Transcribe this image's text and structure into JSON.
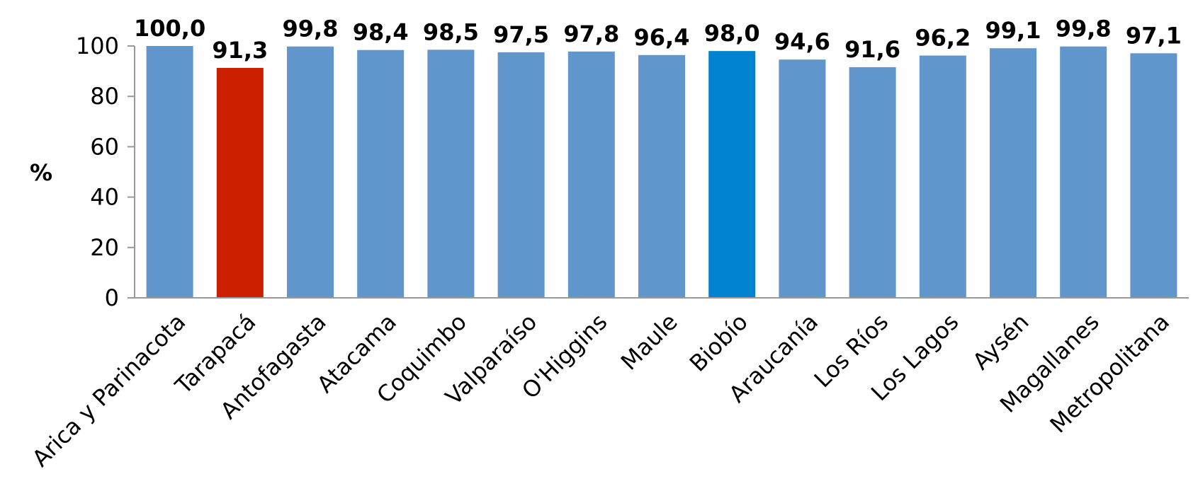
{
  "chart_data": {
    "type": "bar",
    "title": "",
    "xlabel": "",
    "ylabel": "%",
    "ylim": [
      0,
      100
    ],
    "yticks": [
      0,
      20,
      40,
      60,
      80,
      100
    ],
    "grid": false,
    "categories": [
      "Arica y Parinacota",
      "Tarapacá",
      "Antofagasta",
      "Atacama",
      "Coquimbo",
      "Valparaíso",
      "O'Higgins",
      "Maule",
      "Biobío",
      "Araucanía",
      "Los Ríos",
      "Los Lagos",
      "Aysén",
      "Magallanes",
      "Metropolitana"
    ],
    "values": [
      100.0,
      91.3,
      99.8,
      98.4,
      98.5,
      97.5,
      97.8,
      96.4,
      98.0,
      94.6,
      91.6,
      96.2,
      99.1,
      99.8,
      97.1
    ],
    "value_labels": [
      "100,0",
      "91,3",
      "99,8",
      "98,4",
      "98,5",
      "97,5",
      "97,8",
      "96,4",
      "98,0",
      "94,6",
      "91,6",
      "96,2",
      "99,1",
      "99,8",
      "97,1"
    ],
    "colors": {
      "default": "#6096cb",
      "highlight_low": "#cc1f00",
      "highlight_selected": "#0283cf",
      "axis": "#999999"
    },
    "bar_colors": [
      "default",
      "highlight_low",
      "default",
      "default",
      "default",
      "default",
      "default",
      "default",
      "highlight_selected",
      "default",
      "default",
      "default",
      "default",
      "default",
      "default"
    ]
  }
}
